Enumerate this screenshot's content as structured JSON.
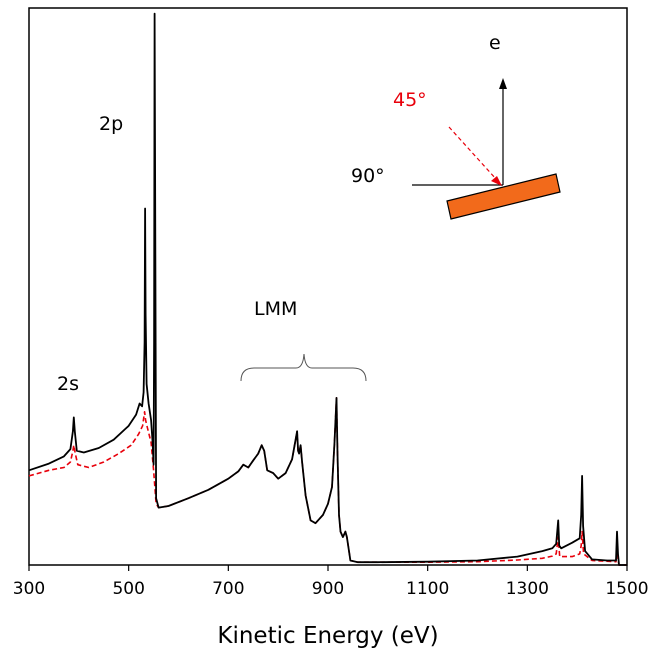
{
  "chart_data": {
    "type": "line",
    "xlabel": "Kinetic Energy (eV)",
    "xlim": [
      300,
      1500
    ],
    "x_ticks": [
      "300",
      "500",
      "700",
      "900",
      "1100",
      "1300",
      "1500"
    ],
    "ylim": [
      0,
      100
    ],
    "y_ticks_shown": false,
    "grid": false,
    "legend": "none",
    "series": [
      {
        "color": "#000000",
        "style": "solid",
        "points": [
          [
            300,
            17.0
          ],
          [
            340,
            18.2
          ],
          [
            370,
            19.5
          ],
          [
            383,
            20.8
          ],
          [
            388,
            24.0
          ],
          [
            390,
            26.5
          ],
          [
            392,
            24.0
          ],
          [
            396,
            20.5
          ],
          [
            410,
            20.2
          ],
          [
            440,
            21.0
          ],
          [
            470,
            22.5
          ],
          [
            500,
            25.0
          ],
          [
            515,
            27.0
          ],
          [
            522,
            29.0
          ],
          [
            527,
            28.5
          ],
          [
            530,
            31.0
          ],
          [
            532,
            40.0
          ],
          [
            533,
            64.0
          ],
          [
            534,
            45.0
          ],
          [
            536,
            32.5
          ],
          [
            540,
            29.0
          ],
          [
            545,
            26.0
          ],
          [
            548,
            22.0
          ],
          [
            550,
            18.0
          ],
          [
            551,
            40.0
          ],
          [
            552,
            99.0
          ],
          [
            553,
            70.0
          ],
          [
            555,
            12.0
          ],
          [
            560,
            10.3
          ],
          [
            580,
            10.6
          ],
          [
            620,
            12.0
          ],
          [
            660,
            13.5
          ],
          [
            700,
            15.5
          ],
          [
            720,
            16.8
          ],
          [
            730,
            18.0
          ],
          [
            740,
            17.5
          ],
          [
            750,
            18.8
          ],
          [
            760,
            20.0
          ],
          [
            767,
            21.5
          ],
          [
            772,
            20.5
          ],
          [
            778,
            17.0
          ],
          [
            790,
            16.5
          ],
          [
            800,
            15.5
          ],
          [
            815,
            16.5
          ],
          [
            828,
            19.0
          ],
          [
            835,
            22.5
          ],
          [
            838,
            24.0
          ],
          [
            840,
            20.5
          ],
          [
            842,
            20.0
          ],
          [
            845,
            21.5
          ],
          [
            848,
            18.5
          ],
          [
            855,
            12.5
          ],
          [
            865,
            8.0
          ],
          [
            875,
            7.5
          ],
          [
            890,
            9.0
          ],
          [
            900,
            11.0
          ],
          [
            908,
            14.0
          ],
          [
            913,
            22.0
          ],
          [
            917,
            30.0
          ],
          [
            919,
            20.0
          ],
          [
            922,
            9.0
          ],
          [
            925,
            6.0
          ],
          [
            930,
            5.0
          ],
          [
            935,
            6.0
          ],
          [
            938,
            5.0
          ],
          [
            945,
            0.8
          ],
          [
            960,
            0.5
          ],
          [
            1000,
            0.5
          ],
          [
            1100,
            0.6
          ],
          [
            1200,
            0.8
          ],
          [
            1280,
            1.5
          ],
          [
            1330,
            2.5
          ],
          [
            1350,
            3.0
          ],
          [
            1358,
            3.8
          ],
          [
            1362,
            8.0
          ],
          [
            1364,
            3.5
          ],
          [
            1368,
            3.0
          ],
          [
            1390,
            4.0
          ],
          [
            1405,
            4.8
          ],
          [
            1408,
            9.0
          ],
          [
            1410,
            16.0
          ],
          [
            1412,
            7.0
          ],
          [
            1416,
            2.5
          ],
          [
            1430,
            1.0
          ],
          [
            1460,
            0.8
          ],
          [
            1478,
            0.8
          ],
          [
            1480,
            6.0
          ],
          [
            1482,
            2.0
          ],
          [
            1484,
            0.0
          ],
          [
            1500,
            0.0
          ]
        ]
      },
      {
        "color": "#e8000b",
        "style": "dashed",
        "points": [
          [
            300,
            16.0
          ],
          [
            340,
            17.0
          ],
          [
            370,
            17.5
          ],
          [
            383,
            18.5
          ],
          [
            388,
            20.5
          ],
          [
            390,
            21.5
          ],
          [
            393,
            20.0
          ],
          [
            398,
            18.0
          ],
          [
            420,
            17.5
          ],
          [
            450,
            18.5
          ],
          [
            480,
            20.0
          ],
          [
            505,
            21.5
          ],
          [
            520,
            23.5
          ],
          [
            528,
            25.0
          ],
          [
            532,
            27.5
          ],
          [
            534,
            26.0
          ],
          [
            538,
            24.5
          ],
          [
            545,
            22.0
          ],
          [
            550,
            17.0
          ],
          [
            555,
            11.0
          ],
          [
            560,
            10.3
          ],
          [
            580,
            10.6
          ],
          [
            620,
            12.0
          ],
          [
            660,
            13.5
          ],
          [
            700,
            15.5
          ],
          [
            720,
            16.8
          ],
          [
            730,
            18.0
          ],
          [
            740,
            17.5
          ],
          [
            750,
            18.8
          ],
          [
            760,
            20.0
          ],
          [
            767,
            21.5
          ],
          [
            772,
            20.5
          ],
          [
            778,
            17.0
          ],
          [
            790,
            16.5
          ],
          [
            800,
            15.5
          ],
          [
            815,
            16.5
          ],
          [
            828,
            19.0
          ],
          [
            835,
            22.5
          ],
          [
            838,
            24.0
          ],
          [
            840,
            20.5
          ],
          [
            842,
            20.0
          ],
          [
            845,
            21.5
          ],
          [
            848,
            18.5
          ],
          [
            855,
            12.5
          ],
          [
            865,
            8.0
          ],
          [
            875,
            7.5
          ],
          [
            890,
            9.0
          ],
          [
            900,
            11.0
          ],
          [
            908,
            14.0
          ],
          [
            913,
            22.0
          ],
          [
            917,
            30.0
          ],
          [
            919,
            20.0
          ],
          [
            922,
            9.0
          ],
          [
            925,
            6.0
          ],
          [
            930,
            5.0
          ],
          [
            935,
            6.0
          ],
          [
            938,
            5.0
          ],
          [
            945,
            0.8
          ],
          [
            960,
            0.5
          ],
          [
            1000,
            0.5
          ],
          [
            1100,
            0.5
          ],
          [
            1200,
            0.6
          ],
          [
            1280,
            0.9
          ],
          [
            1330,
            1.2
          ],
          [
            1350,
            1.6
          ],
          [
            1358,
            2.0
          ],
          [
            1362,
            5.0
          ],
          [
            1365,
            1.5
          ],
          [
            1390,
            1.5
          ],
          [
            1405,
            2.0
          ],
          [
            1408,
            3.5
          ],
          [
            1410,
            6.0
          ],
          [
            1413,
            2.0
          ],
          [
            1430,
            0.8
          ],
          [
            1478,
            0.6
          ],
          [
            1480,
            4.0
          ],
          [
            1482,
            1.0
          ],
          [
            1484,
            0.0
          ],
          [
            1500,
            0.0
          ]
        ]
      }
    ],
    "annotations": {
      "peak_2s": "2s",
      "peak_2p": "2p",
      "region_lmm": "LMM",
      "electron": "e",
      "angle_45": "45°",
      "angle_90": "90°"
    },
    "inset_sample_color": "#f26a1b"
  }
}
